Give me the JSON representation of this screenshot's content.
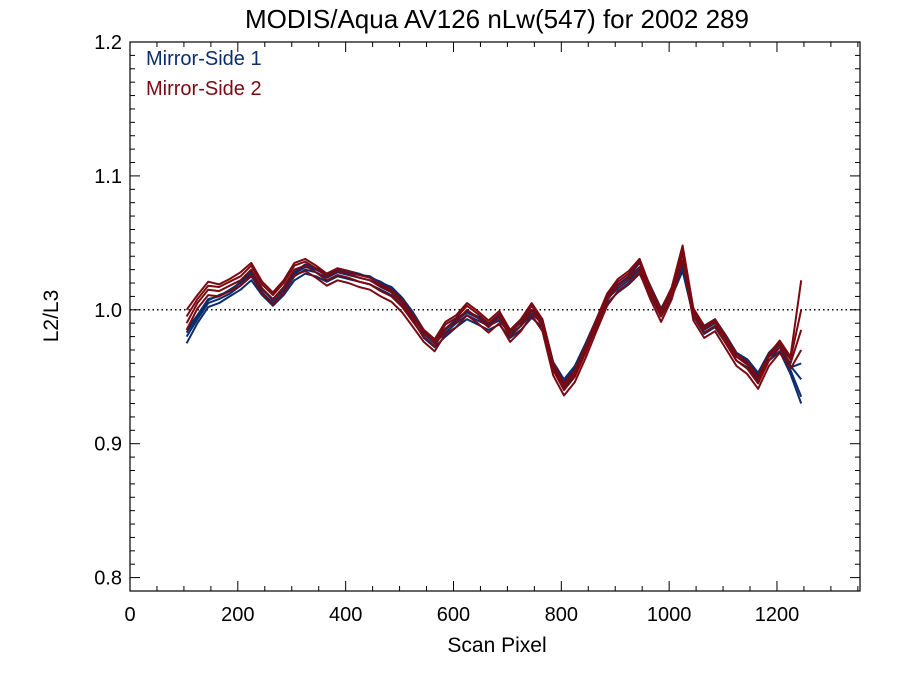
{
  "chart_data": {
    "type": "line",
    "title": "MODIS/Aqua AV126 nLw(547) for 2002 289",
    "xlabel": "Scan Pixel",
    "ylabel": "L2/L3",
    "xlim": [
      0,
      1354
    ],
    "ylim": [
      0.79,
      1.2
    ],
    "xticks": [
      0,
      200,
      400,
      600,
      800,
      1000,
      1200
    ],
    "xtick_labels": [
      "0",
      "200",
      "400",
      "600",
      "800",
      "1000",
      "1200"
    ],
    "yticks": [
      0.8,
      0.9,
      1.0,
      1.1,
      1.2
    ],
    "ytick_labels": [
      "0.8",
      "0.9",
      "1.0",
      "1.1",
      "1.2"
    ],
    "reference_line": {
      "y": 1.0,
      "style": "dotted"
    },
    "legend": {
      "position": "top-left",
      "entries": [
        "Mirror-Side 1",
        "Mirror-Side 2"
      ]
    },
    "grid": false,
    "colors": {
      "mirror_side_1": "#0a2d6e",
      "mirror_side_2": "#7a0a12",
      "axes": "#000000"
    },
    "x": [
      105,
      125,
      145,
      165,
      185,
      205,
      225,
      245,
      265,
      285,
      305,
      325,
      345,
      365,
      385,
      405,
      425,
      445,
      465,
      485,
      505,
      525,
      545,
      565,
      585,
      605,
      625,
      645,
      665,
      685,
      705,
      725,
      745,
      765,
      785,
      805,
      825,
      845,
      865,
      885,
      905,
      925,
      945,
      965,
      985,
      1005,
      1025,
      1045,
      1065,
      1085,
      1105,
      1125,
      1145,
      1165,
      1185,
      1205,
      1225,
      1245
    ],
    "series": [
      {
        "name": "Mirror-Side 1",
        "group": "mirror_side_1",
        "values": [
          0.98,
          0.993,
          1.005,
          1.008,
          1.012,
          1.018,
          1.025,
          1.013,
          1.005,
          1.013,
          1.025,
          1.03,
          1.028,
          1.024,
          1.028,
          1.026,
          1.024,
          1.022,
          1.018,
          1.014,
          1.006,
          0.995,
          0.982,
          0.975,
          0.983,
          0.99,
          0.996,
          0.992,
          0.988,
          0.992,
          0.982,
          0.988,
          0.997,
          0.99,
          0.958,
          0.945,
          0.955,
          0.972,
          0.99,
          1.008,
          1.016,
          1.022,
          1.03,
          1.014,
          0.998,
          1.013,
          1.032,
          0.998,
          0.985,
          0.99,
          0.978,
          0.965,
          0.96,
          0.95,
          0.965,
          0.972,
          0.955,
          0.935
        ]
      },
      {
        "name": "Mirror-Side 1",
        "group": "mirror_side_1",
        "values": [
          0.985,
          0.996,
          1.008,
          1.01,
          1.015,
          1.02,
          1.027,
          1.015,
          1.008,
          1.016,
          1.027,
          1.032,
          1.03,
          1.026,
          1.03,
          1.028,
          1.026,
          1.025,
          1.02,
          1.017,
          1.009,
          0.998,
          0.985,
          0.978,
          0.986,
          0.993,
          0.999,
          0.995,
          0.99,
          0.995,
          0.985,
          0.991,
          1.0,
          0.993,
          0.961,
          0.948,
          0.958,
          0.975,
          0.993,
          1.011,
          1.019,
          1.025,
          1.035,
          1.018,
          1.001,
          1.016,
          1.036,
          1.001,
          0.988,
          0.993,
          0.981,
          0.968,
          0.963,
          0.953,
          0.968,
          0.976,
          0.958,
          0.948
        ]
      },
      {
        "name": "Mirror-Side 1",
        "group": "mirror_side_1",
        "values": [
          0.975,
          0.99,
          1.002,
          1.005,
          1.01,
          1.015,
          1.022,
          1.011,
          1.003,
          1.011,
          1.022,
          1.027,
          1.025,
          1.021,
          1.025,
          1.023,
          1.021,
          1.019,
          1.015,
          1.011,
          1.003,
          0.992,
          0.979,
          0.972,
          0.98,
          0.987,
          0.993,
          0.989,
          0.985,
          0.989,
          0.979,
          0.985,
          0.994,
          0.987,
          0.955,
          0.942,
          0.952,
          0.969,
          0.987,
          1.005,
          1.013,
          1.019,
          1.027,
          1.011,
          0.995,
          1.01,
          1.029,
          0.995,
          0.982,
          0.987,
          0.975,
          0.962,
          0.957,
          0.947,
          0.962,
          0.969,
          0.952,
          0.93
        ]
      },
      {
        "name": "Mirror-Side 1",
        "group": "mirror_side_1",
        "values": [
          0.983,
          0.995,
          1.007,
          1.011,
          1.014,
          1.021,
          1.029,
          1.016,
          1.007,
          1.015,
          1.028,
          1.034,
          1.031,
          1.027,
          1.031,
          1.029,
          1.027,
          1.024,
          1.021,
          1.016,
          1.008,
          0.997,
          0.984,
          0.977,
          0.985,
          0.992,
          0.998,
          0.994,
          0.989,
          0.994,
          0.984,
          0.99,
          0.999,
          0.992,
          0.96,
          0.947,
          0.957,
          0.974,
          0.992,
          1.01,
          1.018,
          1.024,
          1.038,
          1.016,
          1.0,
          1.015,
          1.034,
          1.0,
          0.987,
          0.992,
          0.98,
          0.967,
          0.962,
          0.952,
          0.967,
          0.974,
          0.957,
          0.96
        ]
      },
      {
        "name": "Mirror-Side 2",
        "group": "mirror_side_2",
        "values": [
          0.99,
          1.005,
          1.015,
          1.014,
          1.018,
          1.022,
          1.03,
          1.016,
          1.008,
          1.017,
          1.03,
          1.033,
          1.028,
          1.022,
          1.026,
          1.024,
          1.021,
          1.019,
          1.014,
          1.01,
          1.002,
          0.991,
          0.98,
          0.973,
          0.986,
          0.991,
          1.0,
          0.994,
          0.987,
          0.994,
          0.98,
          0.988,
          1.0,
          0.988,
          0.955,
          0.94,
          0.95,
          0.968,
          0.988,
          1.007,
          1.018,
          1.024,
          1.032,
          1.012,
          0.995,
          1.012,
          1.042,
          0.996,
          0.983,
          0.988,
          0.975,
          0.962,
          0.956,
          0.945,
          0.962,
          0.972,
          0.96,
          0.985
        ]
      },
      {
        "name": "Mirror-Side 2",
        "group": "mirror_side_2",
        "values": [
          0.995,
          1.008,
          1.018,
          1.017,
          1.021,
          1.025,
          1.033,
          1.019,
          1.011,
          1.02,
          1.033,
          1.036,
          1.031,
          1.025,
          1.029,
          1.027,
          1.024,
          1.022,
          1.017,
          1.013,
          1.005,
          0.994,
          0.983,
          0.976,
          0.989,
          0.994,
          1.003,
          0.997,
          0.99,
          0.997,
          0.983,
          0.991,
          1.003,
          0.991,
          0.958,
          0.943,
          0.953,
          0.971,
          0.991,
          1.01,
          1.021,
          1.027,
          1.036,
          1.015,
          0.998,
          1.015,
          1.046,
          0.999,
          0.986,
          0.991,
          0.978,
          0.965,
          0.959,
          0.948,
          0.965,
          0.975,
          0.963,
          1.0
        ]
      },
      {
        "name": "Mirror-Side 2",
        "group": "mirror_side_2",
        "values": [
          0.985,
          1.001,
          1.011,
          1.01,
          1.014,
          1.018,
          1.026,
          1.012,
          1.004,
          1.013,
          1.026,
          1.029,
          1.024,
          1.018,
          1.022,
          1.02,
          1.017,
          1.015,
          1.01,
          1.006,
          0.998,
          0.987,
          0.976,
          0.969,
          0.982,
          0.987,
          0.996,
          0.99,
          0.983,
          0.99,
          0.976,
          0.984,
          0.996,
          0.984,
          0.951,
          0.936,
          0.946,
          0.964,
          0.984,
          1.003,
          1.014,
          1.02,
          1.028,
          1.008,
          0.991,
          1.008,
          1.037,
          0.992,
          0.979,
          0.984,
          0.971,
          0.958,
          0.952,
          0.941,
          0.958,
          0.968,
          0.956,
          0.97
        ]
      },
      {
        "name": "Mirror-Side 2",
        "group": "mirror_side_2",
        "values": [
          1.0,
          1.011,
          1.021,
          1.019,
          1.023,
          1.028,
          1.035,
          1.021,
          1.013,
          1.022,
          1.035,
          1.038,
          1.033,
          1.027,
          1.031,
          1.029,
          1.026,
          1.024,
          1.019,
          1.015,
          1.007,
          0.996,
          0.985,
          0.978,
          0.991,
          0.996,
          1.005,
          0.999,
          0.992,
          0.999,
          0.985,
          0.993,
          1.005,
          0.993,
          0.96,
          0.945,
          0.955,
          0.973,
          0.993,
          1.012,
          1.023,
          1.029,
          1.038,
          1.017,
          1.0,
          1.017,
          1.048,
          1.001,
          0.988,
          0.993,
          0.98,
          0.967,
          0.961,
          0.95,
          0.967,
          0.977,
          0.965,
          1.022
        ]
      }
    ]
  }
}
